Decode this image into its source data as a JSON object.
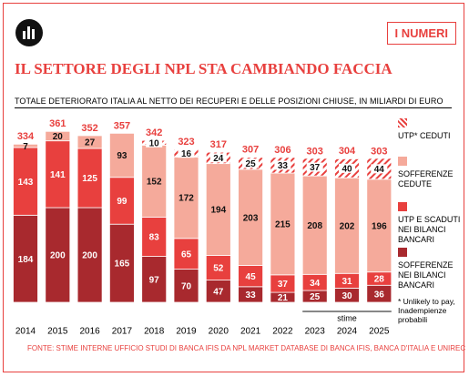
{
  "chart_data": {
    "type": "stacked-bar",
    "badge": "I NUMERI",
    "title": "IL SETTORE DEGLI NPL STA CAMBIANDO FACCIA",
    "subtitle": "TOTALE DETERIORATO ITALIA AL NETTO DEI RECUPERI E DELLE POSIZIONI CHIUSE, IN MILIARDI DI EURO",
    "categories": [
      "2014",
      "2015",
      "2016",
      "2017",
      "2018",
      "2019",
      "2020",
      "2021",
      "2022",
      "2023",
      "2024",
      "2025"
    ],
    "series": [
      {
        "name": "SOFFERENZE NEI BILANCI BANCARI",
        "color": "#a8292e",
        "values": [
          184,
          200,
          200,
          165,
          97,
          70,
          47,
          33,
          21,
          25,
          30,
          36
        ]
      },
      {
        "name": "UTP E SCADUTI NEI BILANCI BANCARI",
        "color": "#e8403e",
        "values": [
          143,
          141,
          125,
          99,
          83,
          65,
          52,
          45,
          37,
          34,
          31,
          28
        ]
      },
      {
        "name": "SOFFERENZE CEDUTE",
        "color": "#f5aa9b",
        "values": [
          7,
          20,
          27,
          93,
          152,
          172,
          194,
          203,
          215,
          208,
          202,
          196
        ]
      },
      {
        "name": "UTP* CEDUTI",
        "color": "hatch",
        "values": [
          null,
          null,
          null,
          null,
          10,
          16,
          24,
          25,
          33,
          37,
          40,
          44
        ]
      }
    ],
    "totals": [
      334,
      361,
      352,
      357,
      342,
      323,
      317,
      307,
      306,
      303,
      304,
      303
    ],
    "estimate_label": "stime",
    "note": "* Unlikely to pay, Inadempienze probabili",
    "source": "FONTE: STIME INTERNE UFFICIO STUDI DI BANCA IFIS DA NPL MARKET DATABASE DI BANCA IFIS, BANCA D'ITALIA E UNIREC"
  }
}
